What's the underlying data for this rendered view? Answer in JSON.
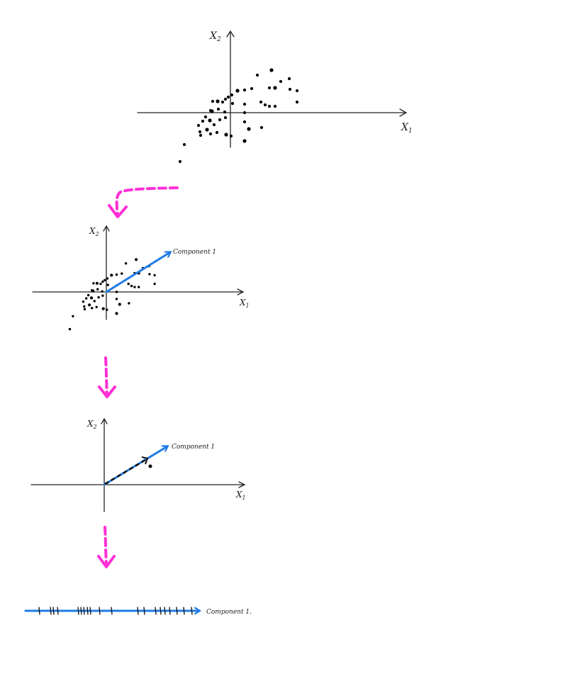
{
  "labels": {
    "x_axis": "X",
    "x_sub": "1",
    "y_axis": "X",
    "y_sub": "2",
    "component": "Component 1",
    "component_final": "Component 1."
  },
  "colors": {
    "arrow_pink": "#ff2fd6",
    "component_blue": "#1f7be6",
    "ink": "#111111"
  },
  "panels": [
    {
      "id": "scatter-original",
      "shows_component": false
    },
    {
      "id": "scatter-with-component",
      "shows_component": true
    },
    {
      "id": "projection-single-point",
      "shows_component": true
    },
    {
      "id": "projected-1d-line",
      "shows_component": true
    }
  ]
}
